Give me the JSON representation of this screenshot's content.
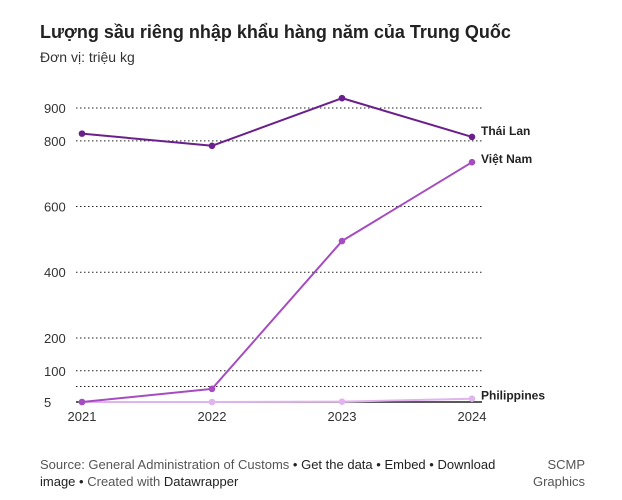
{
  "title": "Lượng sầu riêng nhập khẩu hàng năm của Trung Quốc",
  "subtitle": "Đơn vị: triệu kg",
  "footer": {
    "source": "Source: General Administration of Customs",
    "get_data": "Get the data",
    "embed": "Embed",
    "download": "Download image",
    "created": "Created with",
    "tool": "Datawrapper",
    "separator": "•"
  },
  "credit": {
    "line1": "SCMP",
    "line2": "Graphics"
  },
  "colors": {
    "thailand": "#6b1f8c",
    "vietnam": "#a54cc0",
    "philippines": "#e1b3ef",
    "grid": "#222222",
    "text": "#333333"
  },
  "chart_data": {
    "type": "line",
    "x": [
      "2021",
      "2022",
      "2023",
      "2024"
    ],
    "y_ticks": [
      5,
      100,
      200,
      400,
      600,
      800,
      900
    ],
    "ylim": [
      5,
      950
    ],
    "grid": true,
    "series": [
      {
        "name": "Thái Lan",
        "values": [
          822,
          785,
          930,
          812
        ],
        "color": "#6b1f8c"
      },
      {
        "name": "Việt Nam",
        "values": [
          5,
          45,
          495,
          735
        ],
        "color": "#a54cc0"
      },
      {
        "name": "Philippines",
        "values": [
          5,
          5,
          6,
          15
        ],
        "color": "#e1b3ef"
      }
    ]
  }
}
